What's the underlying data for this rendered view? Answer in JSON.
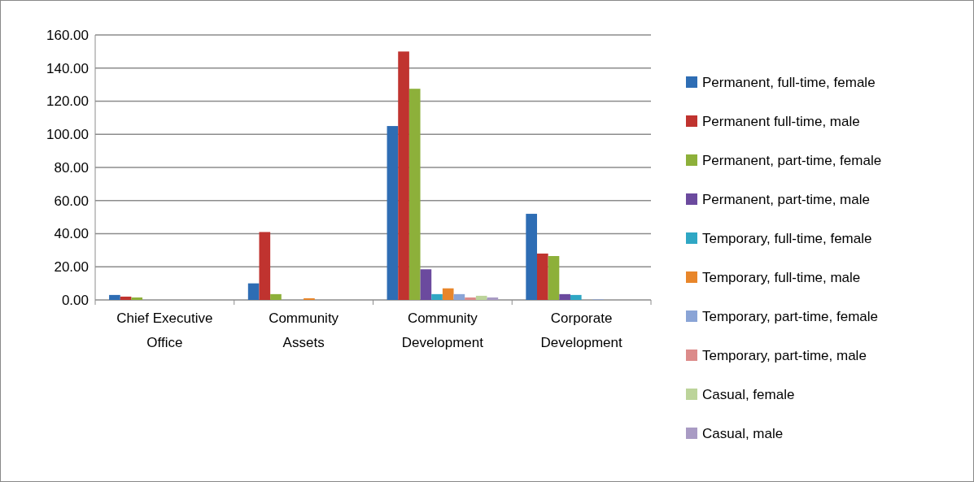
{
  "chart_data": {
    "type": "bar",
    "categories": [
      "Chief Executive Office",
      "Community Assets",
      "Community Development",
      "Corporate Development"
    ],
    "series": [
      {
        "name": "Permanent, full-time, female",
        "color": "#2e6db4",
        "values": [
          3,
          10,
          105,
          52
        ]
      },
      {
        "name": "Permanent full-time, male",
        "color": "#c0332f",
        "values": [
          2,
          41,
          150,
          28
        ]
      },
      {
        "name": "Permanent, part-time, female",
        "color": "#8db03a",
        "values": [
          1.5,
          3.5,
          127.5,
          26.5
        ]
      },
      {
        "name": "Permanent, part-time, male",
        "color": "#6b4a9e",
        "values": [
          0,
          0,
          18.5,
          3.5
        ]
      },
      {
        "name": "Temporary, full-time, female",
        "color": "#2fa7c4",
        "values": [
          0,
          0,
          3.5,
          3
        ]
      },
      {
        "name": "Temporary, full-time, male",
        "color": "#e8862a",
        "values": [
          0,
          1,
          7,
          0
        ]
      },
      {
        "name": "Temporary, part-time, female",
        "color": "#8aa4d6",
        "values": [
          0,
          0,
          3.5,
          0.3
        ]
      },
      {
        "name": "Temporary, part-time, male",
        "color": "#dc8b8a",
        "values": [
          0,
          0,
          1.5,
          null
        ]
      },
      {
        "name": "Casual, female",
        "color": "#bcd49a",
        "values": [
          0,
          0,
          2.5,
          null
        ]
      },
      {
        "name": "Casual, male",
        "color": "#a99bc4",
        "values": [
          0,
          0,
          1.5,
          0
        ]
      }
    ],
    "ylim": [
      0,
      160
    ],
    "yticks": [
      {
        "value": 0,
        "label": "0.00"
      },
      {
        "value": 20,
        "label": "20.00"
      },
      {
        "value": 40,
        "label": "40.00"
      },
      {
        "value": 60,
        "label": "60.00"
      },
      {
        "value": 80,
        "label": "80.00"
      },
      {
        "value": 100,
        "label": "100.00"
      },
      {
        "value": 120,
        "label": "120.00"
      },
      {
        "value": 140,
        "label": "140.00"
      },
      {
        "value": 160,
        "label": "160.00"
      }
    ],
    "grid": "y",
    "legend": "right"
  }
}
